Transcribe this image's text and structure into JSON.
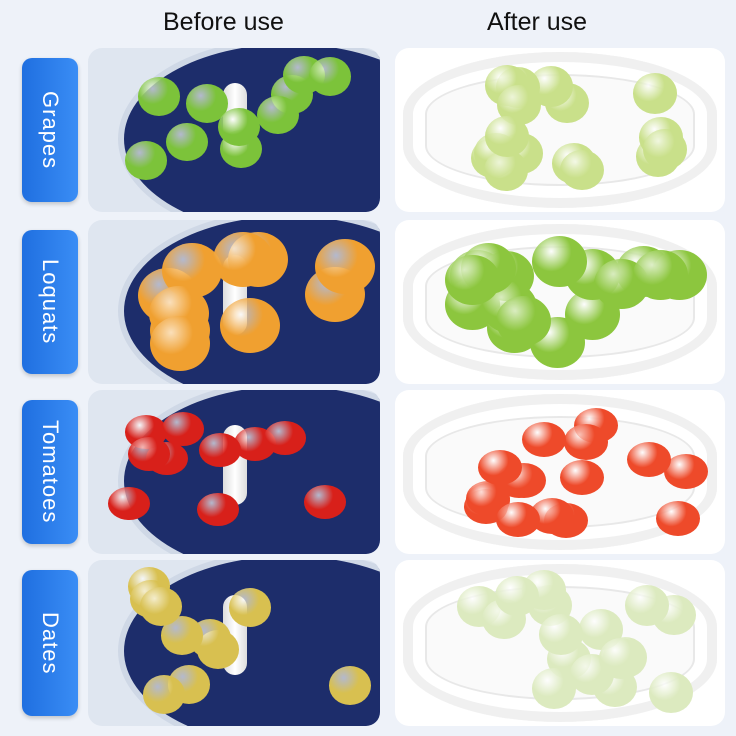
{
  "headers": {
    "before": "Before use",
    "after": "After use"
  },
  "rows": [
    {
      "label": "Grapes",
      "before_color": "#7cc33a",
      "after_color": "#c9e08a"
    },
    {
      "label": "Loquats",
      "before_color": "#f0a030",
      "after_color": "#8cc63e"
    },
    {
      "label": "Tomatoes",
      "before_color": "#d8201a",
      "after_color": "#ee4a2a"
    },
    {
      "label": "Dates",
      "before_color": "#d8c050",
      "after_color": "#dceabf"
    }
  ]
}
